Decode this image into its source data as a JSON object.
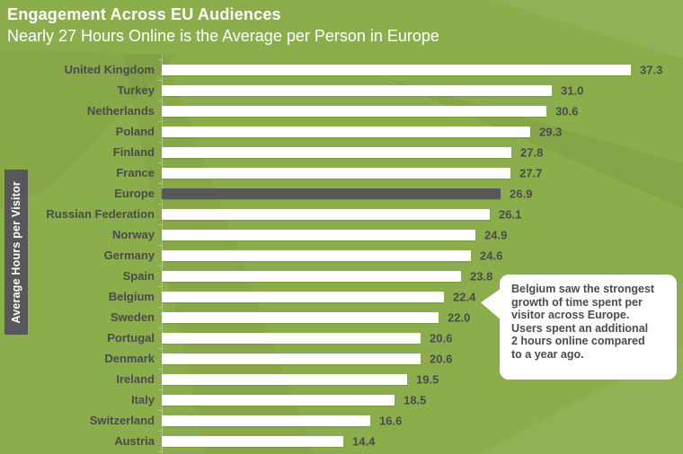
{
  "header": {
    "title": "Engagement Across EU Audiences",
    "subtitle": "Nearly 27 Hours Online is the Average per Person in Europe"
  },
  "y_axis_label": "Average Hours per Visitor",
  "callout": {
    "lines": [
      "Belgium saw the strongest",
      "growth of time spent per",
      "visitor across Europe.",
      "Users spent an additional",
      "2 hours online compared",
      "to a year ago."
    ],
    "text": "Belgium saw the strongest growth of time spent per visitor across Europe. Users spent an additional 2 hours online compared to a year ago."
  },
  "colors": {
    "background": "#8cad4c",
    "bar": "#ffffff",
    "highlight_bar": "#58585a",
    "text_dark": "#4a4b4d",
    "text_light": "#ffffff",
    "axis": "rgba(255,255,255,0.32)"
  },
  "chart_data": {
    "type": "bar",
    "orientation": "horizontal",
    "title": "Engagement Across EU Audiences",
    "subtitle": "Nearly 27 Hours Online is the Average per Person in Europe",
    "axis_label": "Average Hours per Visitor",
    "unit": "average hours per visitor",
    "categories": [
      "United Kingdom",
      "Turkey",
      "Netherlands",
      "Poland",
      "Finland",
      "France",
      "Europe",
      "Russian Federation",
      "Norway",
      "Germany",
      "Spain",
      "Belgium",
      "Sweden",
      "Portugal",
      "Denmark",
      "Ireland",
      "Italy",
      "Switzerland",
      "Austria"
    ],
    "values": [
      37.3,
      31.0,
      30.6,
      29.3,
      27.8,
      27.7,
      26.9,
      26.1,
      24.9,
      24.6,
      23.8,
      22.4,
      22.0,
      20.6,
      20.6,
      19.5,
      18.5,
      16.6,
      14.4
    ],
    "highlight_category": "Europe",
    "value_label_decimals": 1,
    "xlim": [
      0,
      40
    ],
    "grid": false,
    "legend": false
  }
}
